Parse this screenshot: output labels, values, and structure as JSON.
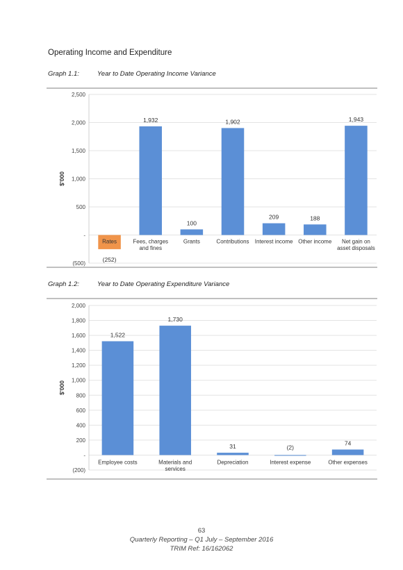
{
  "heading": "Operating Income and Expenditure",
  "graph1": {
    "number": "Graph 1.1:",
    "title": "Year to Date Operating Income Variance"
  },
  "graph2": {
    "number": "Graph 1.2:",
    "title": "Year to Date Operating Expenditure Variance"
  },
  "colors": {
    "bar": "#5b8fd6",
    "highlight": "#f0944a",
    "grid": "#e3e3e3",
    "axis_text": "#444444"
  },
  "chart_data": [
    {
      "type": "bar",
      "title": "Year to Date Operating Income Variance",
      "ylabel": "$'000",
      "ylim": [
        -500,
        2500
      ],
      "yticks": [
        -500,
        0,
        500,
        1000,
        1500,
        2000,
        2500
      ],
      "ytick_labels": [
        "(500)",
        "-",
        "500",
        "1,000",
        "1,500",
        "2,000",
        "2,500"
      ],
      "categories": [
        "Rates",
        "Fees, charges and fines",
        "Grants",
        "Contributions",
        "Interest income",
        "Other income",
        "Net gain on asset disposals"
      ],
      "category_lines": [
        [
          "Rates"
        ],
        [
          "Fees, charges",
          "and fines"
        ],
        [
          "Grants"
        ],
        [
          "Contributions"
        ],
        [
          "Interest income"
        ],
        [
          "Other income"
        ],
        [
          "Net gain on",
          "asset disposals"
        ]
      ],
      "values": [
        -252,
        1932,
        100,
        1902,
        209,
        188,
        1943
      ],
      "data_labels": [
        "(252)",
        "1,932",
        "100",
        "1,902",
        "209",
        "188",
        "1,943"
      ],
      "highlight_index": 0,
      "grid": true
    },
    {
      "type": "bar",
      "title": "Year to Date Operating Expenditure Variance",
      "ylabel": "$'000",
      "ylim": [
        -200,
        2000
      ],
      "yticks": [
        -200,
        0,
        200,
        400,
        600,
        800,
        1000,
        1200,
        1400,
        1600,
        1800,
        2000
      ],
      "ytick_labels": [
        "(200)",
        "-",
        "200",
        "400",
        "600",
        "800",
        "1,000",
        "1,200",
        "1,400",
        "1,600",
        "1,800",
        "2,000"
      ],
      "categories": [
        "Employee costs",
        "Materials and services",
        "Depreciation",
        "Interest expense",
        "Other expenses"
      ],
      "category_lines": [
        [
          "Employee costs"
        ],
        [
          "Materials and",
          "services"
        ],
        [
          "Depreciation"
        ],
        [
          "Interest expense"
        ],
        [
          "Other expenses"
        ]
      ],
      "values": [
        1522,
        1730,
        31,
        -2,
        74
      ],
      "data_labels": [
        "1,522",
        "1,730",
        "31",
        "(2)",
        "74"
      ],
      "highlight_index": -1,
      "grid": true
    }
  ],
  "footer": {
    "page_number": "63",
    "subtitle": "Quarterly Reporting – Q1 July – September 2016",
    "trim_ref": "TRIM Ref: 16/162062"
  }
}
